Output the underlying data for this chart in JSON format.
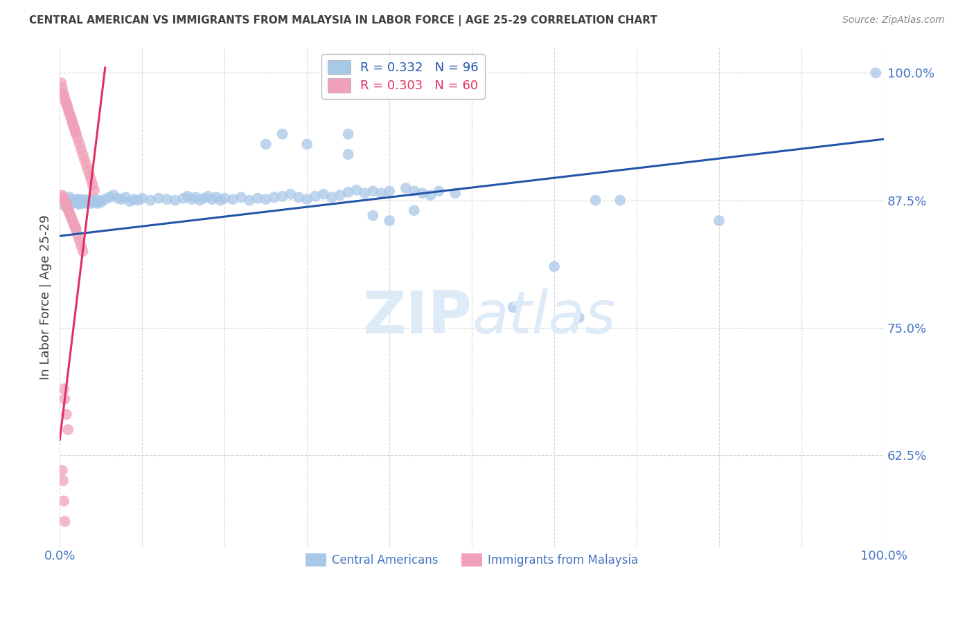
{
  "title": "CENTRAL AMERICAN VS IMMIGRANTS FROM MALAYSIA IN LABOR FORCE | AGE 25-29 CORRELATION CHART",
  "source": "Source: ZipAtlas.com",
  "ylabel": "In Labor Force | Age 25-29",
  "blue_R": 0.332,
  "blue_N": 96,
  "pink_R": 0.303,
  "pink_N": 60,
  "blue_color": "#A8C8E8",
  "pink_color": "#F0A0B8",
  "blue_line_color": "#2255AA",
  "pink_line_color": "#E03060",
  "axis_label_color": "#4472C4",
  "title_color": "#404040",
  "watermark_color": "#DDEAF8",
  "background_color": "#FFFFFF",
  "grid_color": "#CCCCCC",
  "xmin": 0.0,
  "xmax": 1.0,
  "ymin": 0.535,
  "ymax": 1.025,
  "yticks": [
    0.625,
    0.75,
    0.875,
    1.0
  ],
  "ytick_labels": [
    "62.5%",
    "75.0%",
    "87.5%",
    "100.0%"
  ],
  "xticks": [
    0.0,
    0.1,
    0.2,
    0.3,
    0.4,
    0.5,
    0.6,
    0.7,
    0.8,
    0.9,
    1.0
  ],
  "xtick_labels": [
    "0.0%",
    "",
    "",
    "",
    "",
    "",
    "",
    "",
    "",
    "",
    "100.0%"
  ],
  "blue_trend_x": [
    0.0,
    1.0
  ],
  "blue_trend_y": [
    0.84,
    0.935
  ],
  "pink_trend_x": [
    0.0,
    0.055
  ],
  "pink_trend_y": [
    0.64,
    1.005
  ],
  "blue_scatter_x": [
    0.005,
    0.008,
    0.01,
    0.012,
    0.014,
    0.015,
    0.016,
    0.017,
    0.018,
    0.019,
    0.02,
    0.021,
    0.022,
    0.023,
    0.024,
    0.025,
    0.026,
    0.027,
    0.028,
    0.03,
    0.032,
    0.034,
    0.036,
    0.038,
    0.04,
    0.042,
    0.044,
    0.046,
    0.048,
    0.05,
    0.055,
    0.06,
    0.065,
    0.07,
    0.075,
    0.08,
    0.085,
    0.09,
    0.095,
    0.1,
    0.11,
    0.12,
    0.13,
    0.14,
    0.15,
    0.155,
    0.16,
    0.165,
    0.17,
    0.175,
    0.18,
    0.185,
    0.19,
    0.195,
    0.2,
    0.21,
    0.22,
    0.23,
    0.24,
    0.25,
    0.26,
    0.27,
    0.28,
    0.29,
    0.3,
    0.31,
    0.32,
    0.33,
    0.34,
    0.35,
    0.36,
    0.37,
    0.38,
    0.39,
    0.4,
    0.42,
    0.43,
    0.44,
    0.46,
    0.48,
    0.38,
    0.4,
    0.43,
    0.35,
    0.45,
    0.55,
    0.6,
    0.63,
    0.68,
    0.8,
    0.99,
    0.65,
    0.35,
    0.27,
    0.3,
    0.25
  ],
  "blue_scatter_y": [
    0.87,
    0.875,
    0.872,
    0.878,
    0.874,
    0.876,
    0.872,
    0.873,
    0.875,
    0.874,
    0.873,
    0.876,
    0.872,
    0.875,
    0.871,
    0.874,
    0.873,
    0.876,
    0.874,
    0.872,
    0.875,
    0.873,
    0.876,
    0.872,
    0.875,
    0.873,
    0.876,
    0.872,
    0.875,
    0.873,
    0.876,
    0.878,
    0.88,
    0.877,
    0.876,
    0.878,
    0.874,
    0.876,
    0.875,
    0.877,
    0.875,
    0.877,
    0.876,
    0.875,
    0.877,
    0.879,
    0.876,
    0.878,
    0.875,
    0.877,
    0.879,
    0.876,
    0.878,
    0.875,
    0.877,
    0.876,
    0.878,
    0.875,
    0.877,
    0.876,
    0.878,
    0.879,
    0.881,
    0.878,
    0.876,
    0.879,
    0.881,
    0.878,
    0.88,
    0.883,
    0.885,
    0.882,
    0.884,
    0.882,
    0.884,
    0.887,
    0.884,
    0.882,
    0.884,
    0.882,
    0.86,
    0.855,
    0.865,
    0.92,
    0.88,
    0.77,
    0.81,
    0.76,
    0.875,
    0.855,
    1.0,
    0.875,
    0.94,
    0.94,
    0.93,
    0.93
  ],
  "pink_scatter_x": [
    0.002,
    0.003,
    0.004,
    0.005,
    0.006,
    0.007,
    0.008,
    0.009,
    0.01,
    0.011,
    0.012,
    0.013,
    0.014,
    0.015,
    0.016,
    0.017,
    0.018,
    0.019,
    0.02,
    0.022,
    0.024,
    0.026,
    0.028,
    0.03,
    0.032,
    0.034,
    0.036,
    0.038,
    0.04,
    0.042,
    0.003,
    0.004,
    0.005,
    0.006,
    0.007,
    0.008,
    0.009,
    0.01,
    0.011,
    0.012,
    0.013,
    0.014,
    0.015,
    0.016,
    0.017,
    0.018,
    0.019,
    0.02,
    0.022,
    0.024,
    0.026,
    0.028,
    0.005,
    0.006,
    0.008,
    0.01,
    0.003,
    0.004,
    0.005,
    0.006
  ],
  "pink_scatter_y": [
    0.99,
    0.985,
    0.98,
    0.978,
    0.975,
    0.972,
    0.97,
    0.968,
    0.965,
    0.962,
    0.96,
    0.957,
    0.955,
    0.952,
    0.95,
    0.947,
    0.945,
    0.942,
    0.94,
    0.935,
    0.93,
    0.925,
    0.92,
    0.915,
    0.91,
    0.905,
    0.9,
    0.895,
    0.89,
    0.885,
    0.88,
    0.878,
    0.876,
    0.874,
    0.872,
    0.87,
    0.868,
    0.866,
    0.864,
    0.862,
    0.86,
    0.858,
    0.856,
    0.854,
    0.852,
    0.85,
    0.848,
    0.846,
    0.84,
    0.835,
    0.83,
    0.825,
    0.69,
    0.68,
    0.665,
    0.65,
    0.61,
    0.6,
    0.58,
    0.56
  ]
}
